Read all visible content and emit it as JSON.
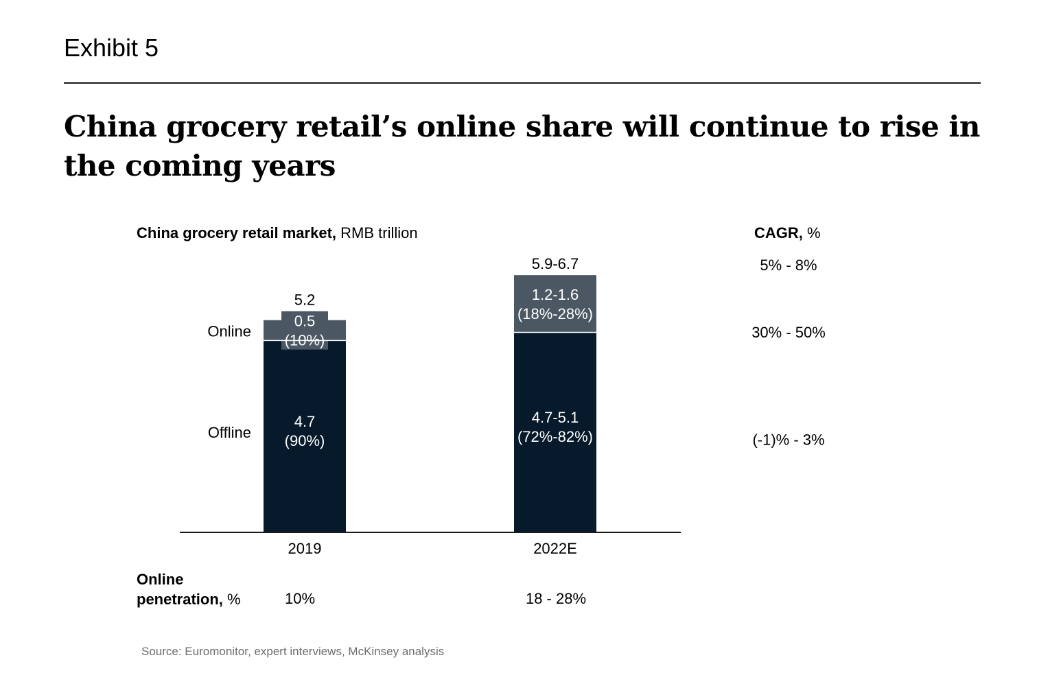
{
  "exhibit": "Exhibit 5",
  "headline": "China grocery retail’s online share will continue to rise in the coming years",
  "chart_subtitle": {
    "bold": "China grocery retail market,",
    "normal": " RMB trillion"
  },
  "cagr_header": {
    "bold": "CAGR,",
    "normal": " %"
  },
  "penetration_label": {
    "line1": "Online",
    "line2_bold": "penetration,",
    "line2_normal": " %"
  },
  "source": "Source: Euromonitor, expert interviews, McKinsey analysis",
  "colors": {
    "online": "#4b5863",
    "offline": "#071a2b",
    "axis": "#1a1a1a"
  },
  "chart_data": {
    "type": "bar",
    "stacked": true,
    "categories": [
      "2019",
      "2022E"
    ],
    "series": [
      {
        "name": "Offline",
        "values": [
          4.7,
          4.9
        ],
        "labels": [
          "4.7",
          "4.7-5.1"
        ],
        "share_labels": [
          "(90%)",
          "(72%-82%)"
        ]
      },
      {
        "name": "Online",
        "values": [
          0.5,
          1.4
        ],
        "labels": [
          "0.5",
          "1.2-1.6"
        ],
        "share_labels": [
          "(10%)",
          "(18%-28%)"
        ]
      }
    ],
    "totals": [
      "5.2",
      "5.9-6.7"
    ],
    "cagr": {
      "total": "5% -  8%",
      "Online": "30% - 50%",
      "Offline": "(-1)% - 3%"
    },
    "online_penetration": [
      "10%",
      "18 - 28%"
    ],
    "ylim": [
      0,
      6.5
    ]
  }
}
